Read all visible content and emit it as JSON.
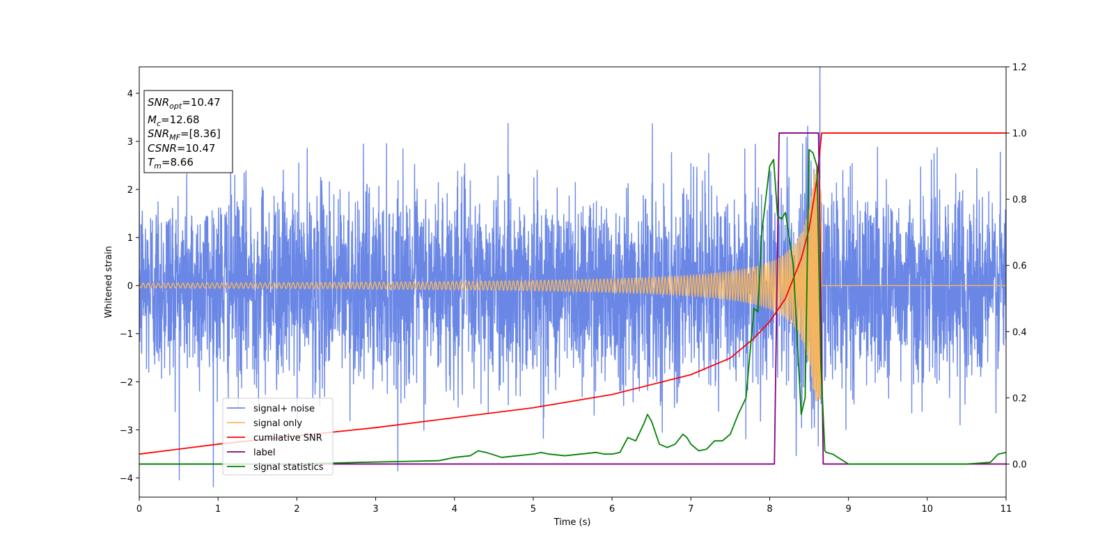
{
  "chart_data": {
    "type": "line",
    "xlabel": "Time (s)",
    "ylabel": "Whitened strain",
    "xlim": [
      0,
      11
    ],
    "ylim": [
      -4.4,
      4.55
    ],
    "y2lim": [
      -0.1,
      1.2
    ],
    "x_ticks": [
      "0",
      "1",
      "2",
      "3",
      "4",
      "5",
      "6",
      "7",
      "8",
      "9",
      "10",
      "11"
    ],
    "y_ticks": [
      "−4",
      "−3",
      "−2",
      "−1",
      "0",
      "1",
      "2",
      "3",
      "4"
    ],
    "y2_ticks": [
      "0.0",
      "0.2",
      "0.4",
      "0.6",
      "0.8",
      "1.0",
      "1.2"
    ],
    "grid": false,
    "legend_position": "lower-left",
    "annotation": {
      "lines": [
        {
          "base": "SNR",
          "sub": "opt",
          "rest": "=10.47"
        },
        {
          "base": "M",
          "sub": "c",
          "rest": "=12.68"
        },
        {
          "base": "SNR",
          "sub": "MF",
          "rest": "=[8.36]"
        },
        {
          "base": "CSNR",
          "sub": "",
          "rest": "=10.47"
        },
        {
          "base": "T",
          "sub": "m",
          "rest": "=8.66"
        }
      ]
    },
    "series": [
      {
        "name": "signal+ noise",
        "color": "#6a87e6",
        "axis": "left",
        "description_kind": "noise",
        "std": 1.0,
        "signal_start_amp": 0.05,
        "merger_time": 8.66
      },
      {
        "name": "signal only",
        "color": "#f5b560",
        "axis": "left",
        "description_kind": "chirp",
        "start_amp": 0.05,
        "peak_amp": 2.4,
        "merger_time": 8.66
      },
      {
        "name": "cumilative SNR",
        "color": "#ff0000",
        "axis": "right",
        "x": [
          0,
          1,
          2,
          3,
          4,
          5,
          6,
          7,
          7.5,
          7.8,
          8.0,
          8.2,
          8.4,
          8.5,
          8.6,
          8.66,
          8.67,
          11
        ],
        "y": [
          0.03,
          0.06,
          0.085,
          0.11,
          0.14,
          0.17,
          0.21,
          0.27,
          0.32,
          0.38,
          0.43,
          0.5,
          0.62,
          0.71,
          0.86,
          1.0,
          1.0,
          1.0
        ]
      },
      {
        "name": "label",
        "color": "#800080",
        "axis": "right",
        "x": [
          0,
          8.06,
          8.12,
          8.62,
          8.68,
          11
        ],
        "y": [
          0,
          0,
          1,
          1,
          0,
          0
        ]
      },
      {
        "name": "signal statistics",
        "color": "#008000",
        "axis": "right",
        "x": [
          0,
          1,
          2,
          2.8,
          3.4,
          3.8,
          4.0,
          4.2,
          4.3,
          4.4,
          4.6,
          4.8,
          5.0,
          5.1,
          5.2,
          5.4,
          5.6,
          5.8,
          5.9,
          6.0,
          6.1,
          6.2,
          6.3,
          6.4,
          6.45,
          6.5,
          6.6,
          6.7,
          6.8,
          6.9,
          6.95,
          7.0,
          7.1,
          7.2,
          7.3,
          7.4,
          7.5,
          7.6,
          7.7,
          7.8,
          7.85,
          7.9,
          8.0,
          8.05,
          8.1,
          8.15,
          8.2,
          8.3,
          8.4,
          8.45,
          8.5,
          8.55,
          8.6,
          8.65,
          8.7,
          8.72,
          8.8,
          9.0,
          9.5,
          10,
          10.5,
          10.8,
          10.9,
          11
        ],
        "y": [
          0,
          0,
          0,
          0.005,
          0.008,
          0.01,
          0.02,
          0.025,
          0.04,
          0.035,
          0.02,
          0.025,
          0.03,
          0.035,
          0.03,
          0.025,
          0.03,
          0.035,
          0.03,
          0.03,
          0.035,
          0.08,
          0.07,
          0.12,
          0.15,
          0.13,
          0.06,
          0.05,
          0.06,
          0.09,
          0.08,
          0.06,
          0.04,
          0.045,
          0.07,
          0.07,
          0.09,
          0.15,
          0.2,
          0.47,
          0.46,
          0.7,
          0.9,
          0.92,
          0.75,
          0.74,
          0.76,
          0.6,
          0.15,
          0.2,
          0.95,
          0.94,
          0.9,
          0.3,
          0.04,
          0.035,
          0.03,
          0.0,
          0.0,
          0.0,
          0.0,
          0.005,
          0.03,
          0.035
        ]
      }
    ]
  }
}
